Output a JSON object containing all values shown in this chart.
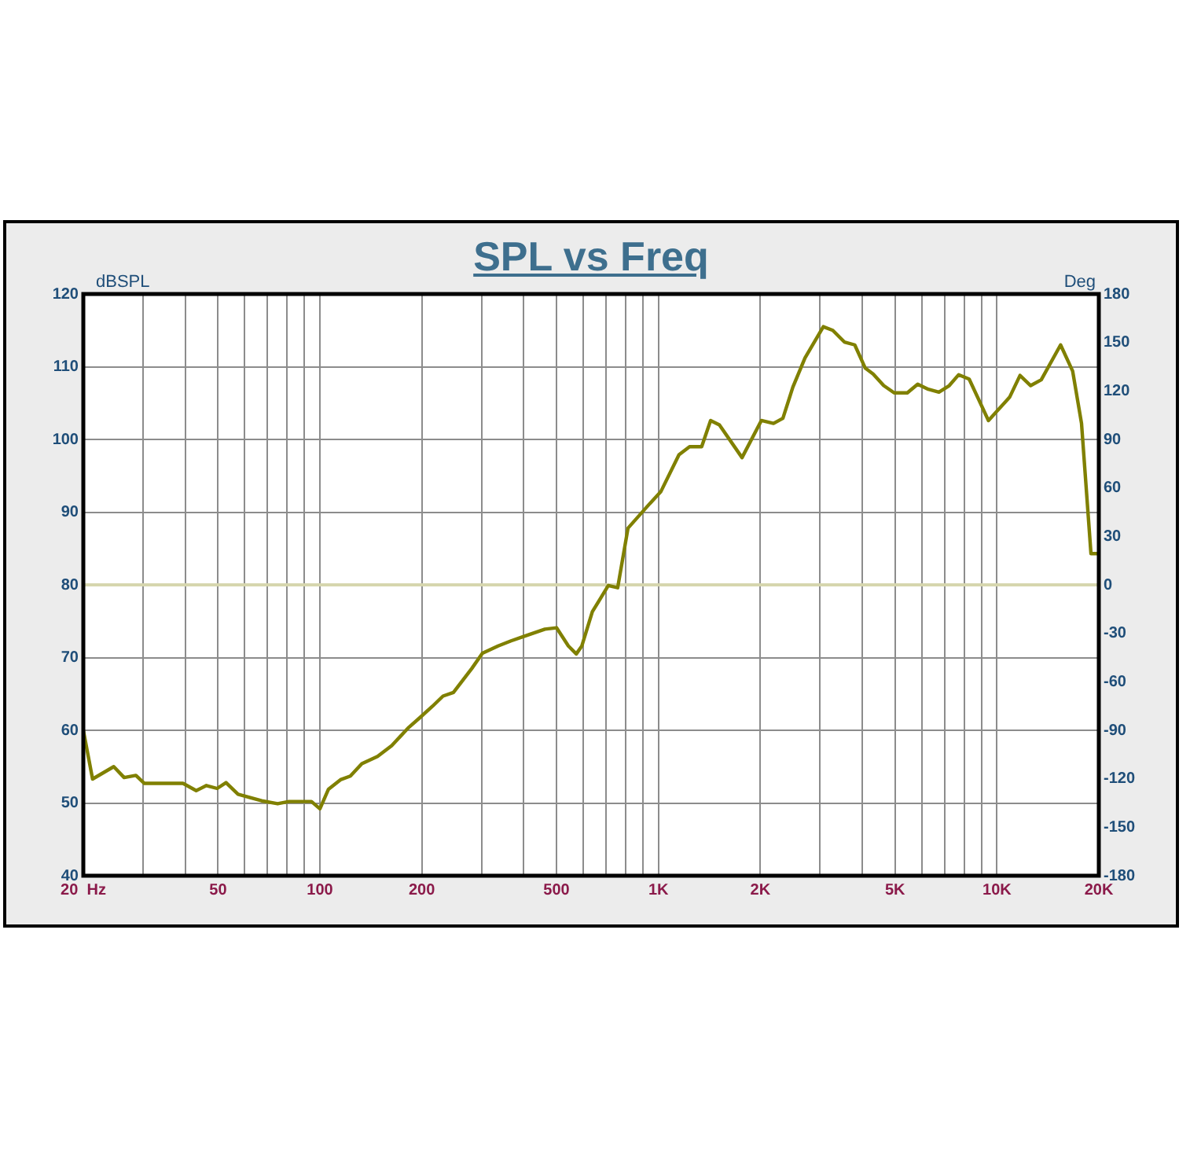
{
  "chart_data": {
    "type": "line",
    "title": "SPL vs Freq",
    "ylabel": "dBSPL",
    "y2label": "Deg",
    "x": [
      20,
      21.3,
      24.6,
      26.4,
      28.6,
      30.3,
      39.4,
      43.1,
      46.2,
      49.7,
      52.8,
      57.3,
      67.3,
      75,
      81,
      94.4,
      100,
      106,
      115,
      123,
      133,
      148,
      163,
      183,
      197,
      215,
      231,
      248,
      281,
      302,
      336,
      367,
      400,
      462,
      500,
      542,
      572,
      594,
      638,
      711,
      758,
      813,
      944,
      1016,
      1150,
      1236,
      1342,
      1426,
      1514,
      1766,
      2014,
      2188,
      2332,
      2496,
      2710,
      3070,
      3274,
      3542,
      3802,
      4084,
      4308,
      4630,
      4972,
      5436,
      5834,
      6270,
      6740,
      7230,
      7710,
      8280,
      9440,
      10900,
      11700,
      12580,
      13520,
      15420,
      16740,
      17780,
      18960,
      20000
    ],
    "series": [
      {
        "color": "#808000",
        "values": [
          60.0,
          53.3,
          55.0,
          53.5,
          53.8,
          52.7,
          52.7,
          51.7,
          52.4,
          52.0,
          52.8,
          51.2,
          50.3,
          49.9,
          50.2,
          50.2,
          49.2,
          51.9,
          53.2,
          53.7,
          55.4,
          56.4,
          57.9,
          60.4,
          61.7,
          63.3,
          64.7,
          65.2,
          68.5,
          70.6,
          71.6,
          72.3,
          72.9,
          73.9,
          74.1,
          71.6,
          70.5,
          71.6,
          76.3,
          79.9,
          79.6,
          87.8,
          91.2,
          92.8,
          97.9,
          99.0,
          99.0,
          102.6,
          102.0,
          97.5,
          102.6,
          102.2,
          102.9,
          107.2,
          111.2,
          115.5,
          115.0,
          113.4,
          113.0,
          109.8,
          109.0,
          107.4,
          106.4,
          106.4,
          107.6,
          106.9,
          106.5,
          107.4,
          108.9,
          108.3,
          102.6,
          105.8,
          108.8,
          107.4,
          108.2,
          113.0,
          109.4,
          102.2,
          84.3,
          84.3
        ]
      }
    ],
    "log": "x",
    "xlim": [
      20,
      20000
    ],
    "xticks": [
      {
        "value": 20,
        "label": "20  Hz"
      },
      {
        "value": 30,
        "label": null
      },
      {
        "value": 40,
        "label": null
      },
      {
        "value": 50,
        "label": "50"
      },
      {
        "value": 60,
        "label": null
      },
      {
        "value": 70,
        "label": null
      },
      {
        "value": 80,
        "label": null
      },
      {
        "value": 90,
        "label": null
      },
      {
        "value": 100,
        "label": "100"
      },
      {
        "value": 200,
        "label": "200"
      },
      {
        "value": 300,
        "label": null
      },
      {
        "value": 400,
        "label": null
      },
      {
        "value": 500,
        "label": "500"
      },
      {
        "value": 600,
        "label": null
      },
      {
        "value": 700,
        "label": null
      },
      {
        "value": 800,
        "label": null
      },
      {
        "value": 900,
        "label": null
      },
      {
        "value": 1000,
        "label": "1K"
      },
      {
        "value": 2000,
        "label": "2K"
      },
      {
        "value": 3000,
        "label": null
      },
      {
        "value": 4000,
        "label": null
      },
      {
        "value": 5000,
        "label": "5K"
      },
      {
        "value": 6000,
        "label": null
      },
      {
        "value": 7000,
        "label": null
      },
      {
        "value": 8000,
        "label": null
      },
      {
        "value": 9000,
        "label": null
      },
      {
        "value": 10000,
        "label": "10K"
      },
      {
        "value": 20000,
        "label": "20K"
      }
    ],
    "ylim": [
      40,
      120
    ],
    "yticks": [
      40,
      50,
      60,
      70,
      80,
      90,
      100,
      110,
      120
    ],
    "y2lim": [
      -180,
      180
    ],
    "y2ticks": [
      -180,
      -150,
      -120,
      -90,
      -60,
      -30,
      0,
      30,
      60,
      90,
      120,
      150,
      180
    ],
    "ref_lines": [
      {
        "axis": "y2",
        "value": 0,
        "color": "#d6d6ae"
      }
    ],
    "grid": true,
    "legend": false,
    "marker": "none",
    "line_style": "solid"
  }
}
